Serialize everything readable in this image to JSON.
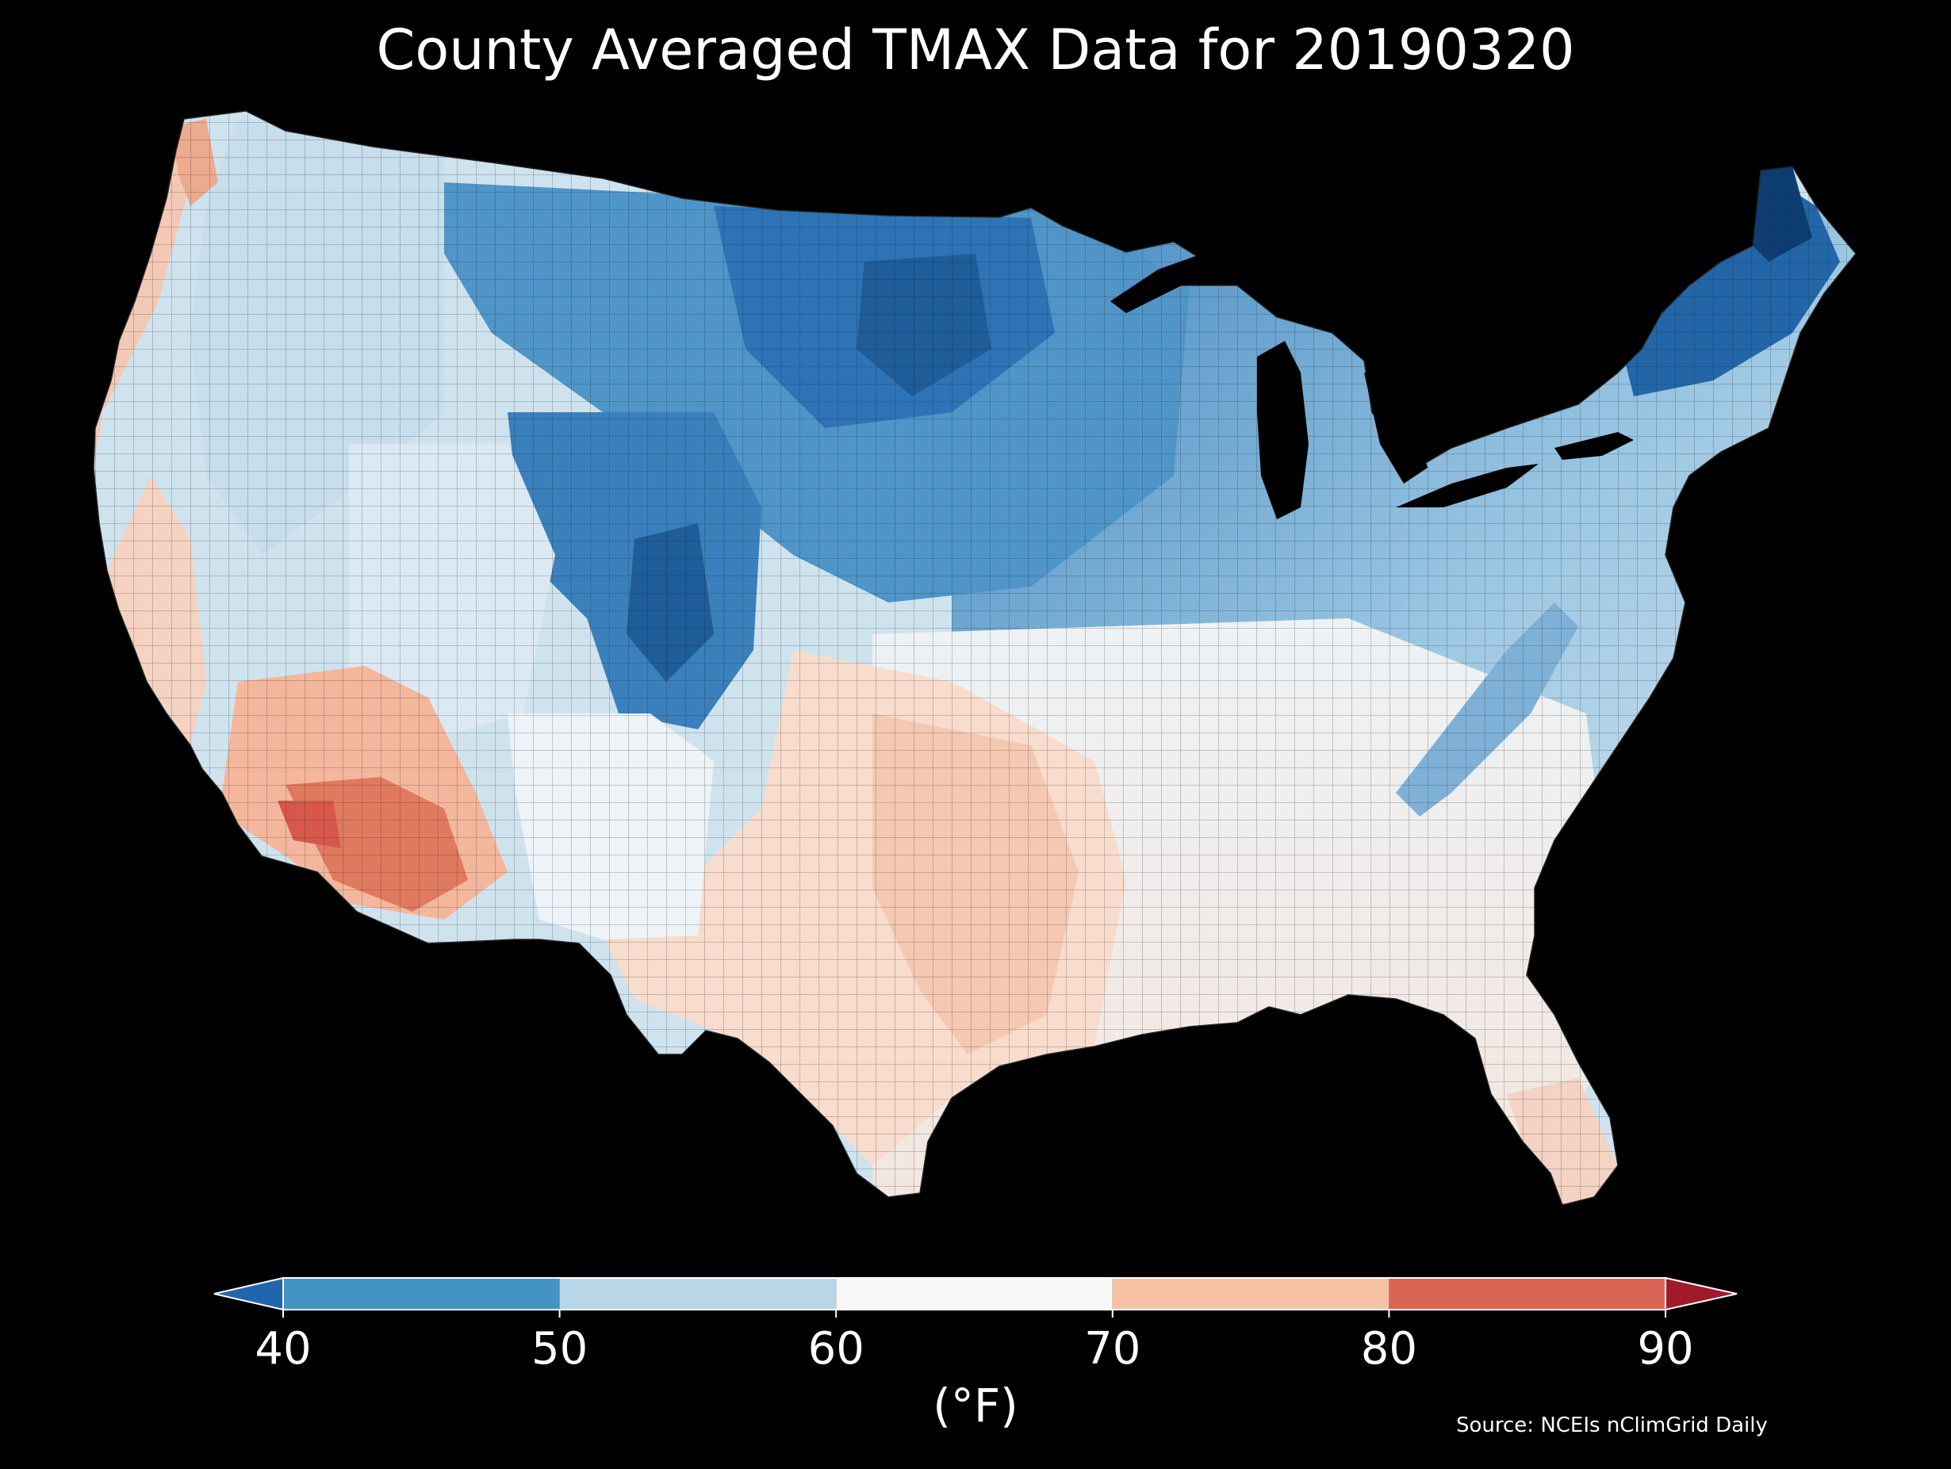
{
  "title": "County Averaged TMAX Data for 20190320",
  "colorbar": {
    "label": "(°F)",
    "ticks": [
      "40",
      "50",
      "60",
      "70",
      "80",
      "90"
    ],
    "bins": [
      {
        "range": [
          40,
          50
        ],
        "color": "#4393c3"
      },
      {
        "range": [
          50,
          60
        ],
        "color": "#b7d6e8"
      },
      {
        "range": [
          60,
          70
        ],
        "color": "#f7f7f7"
      },
      {
        "range": [
          70,
          80
        ],
        "color": "#f7c1a6"
      },
      {
        "range": [
          80,
          90
        ],
        "color": "#db6455"
      }
    ],
    "extend_low_color": "#2166ac",
    "extend_high_color": "#a01a2c"
  },
  "source": "Source: NCEIs nClimGrid Daily",
  "map_colors": {
    "very_cold": "#0d3d73",
    "cold": "#2e73b5",
    "cool": "#6aa7d3",
    "mild_cool": "#b7d6e8",
    "neutral": "#eef2f5",
    "mild_warm": "#f7d4c2",
    "warm": "#f2b39a",
    "hot": "#e07a5f",
    "background": "#000000"
  }
}
